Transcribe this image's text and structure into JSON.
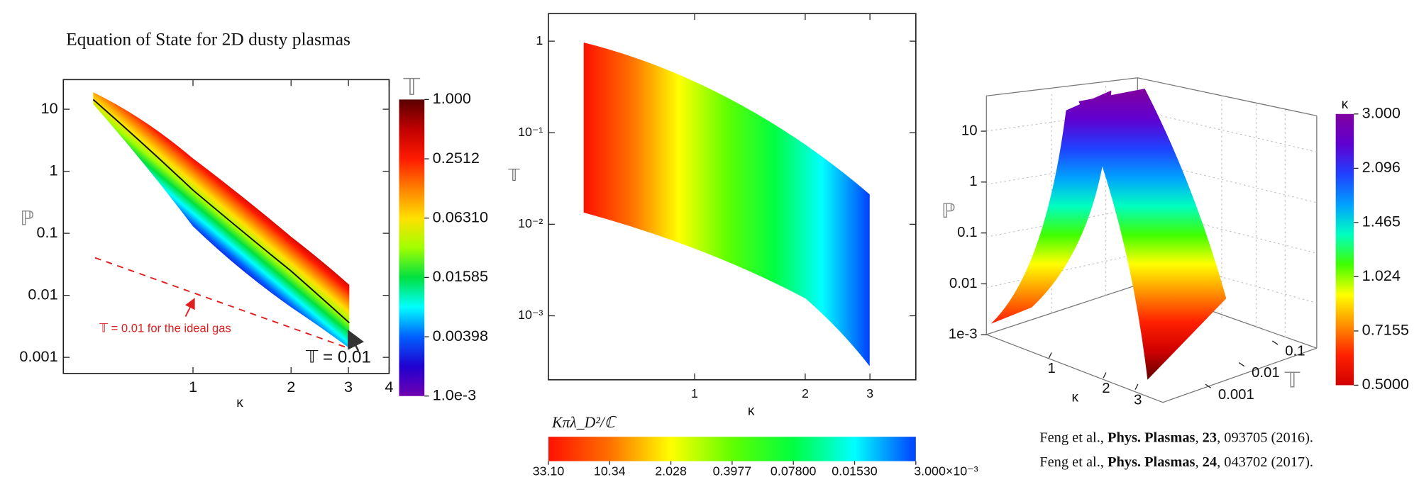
{
  "chart_data": [
    {
      "type": "surface-band",
      "title": "Equation of State for 2D dusty plasmas",
      "x_label": "κ",
      "y_label": "ℙ",
      "log_x": true,
      "log_y": true,
      "xlim": [
        0.4,
        4
      ],
      "ylim": [
        0.00055,
        30
      ],
      "xticks": [
        1,
        2,
        3,
        4
      ],
      "yticks": [
        10,
        1,
        0.1,
        0.01,
        0.001
      ],
      "annotations": [
        "𝕋 = 0.01 for the ideal gas",
        "𝕋 = 0.01"
      ],
      "colorbar": {
        "title": "𝕋",
        "log": true,
        "lim": [
          0.001,
          1
        ],
        "ticks": [
          {
            "value": 1,
            "label": "1.000"
          },
          0.2512,
          {
            "value": 0.0631,
            "label": "0.06310"
          },
          0.01585,
          0.00398,
          {
            "value": 0.001,
            "label": "1.0e-3"
          }
        ],
        "colors": [
          "#5a0000",
          "#c00000",
          "#ff1a00",
          "#ff8000",
          "#ffe000",
          "#a0ff00",
          "#00e040",
          "#00ffff",
          "#0060ff",
          "#2000d0",
          "#7000b0"
        ]
      }
    },
    {
      "type": "surface-map",
      "x_label": "κ",
      "y_label": "𝕋",
      "log_x": true,
      "log_y": true,
      "xlim": [
        0.4,
        4
      ],
      "ylim": [
        0.0002,
        2
      ],
      "xticks": [
        1,
        2,
        3
      ],
      "yticks": [
        1,
        {
          "value": 0.1,
          "label": "10⁻¹"
        },
        {
          "value": 0.01,
          "label": "10⁻²"
        },
        {
          "value": 0.001,
          "label": "10⁻³"
        }
      ],
      "colorbar": {
        "title": "Kπλ_D²/ℂ",
        "ticks": [
          {
            "value": 33.1,
            "label": "33.10"
          },
          10.34,
          2.028,
          0.3977,
          {
            "value": 0.078,
            "label": "0.07800"
          },
          {
            "value": 0.0153,
            "label": "0.01530"
          },
          {
            "value": 0.003,
            "label": "3.000×10⁻³"
          }
        ],
        "colors": [
          "#ff1000",
          "#ff7000",
          "#ffff00",
          "#60ff00",
          "#00ff40",
          "#00ffff",
          "#0040ff"
        ]
      }
    },
    {
      "type": "surface-3d",
      "z_label": "ℙ",
      "x_label": "κ",
      "y_label": "𝕋",
      "zticks": [
        10,
        1,
        0.1,
        0.01,
        {
          "value": 0.001,
          "label": "1e-3"
        }
      ],
      "xticks": [
        1,
        2,
        3
      ],
      "yticks": [
        0.001,
        0.01,
        0.1
      ],
      "colorbar": {
        "title": "κ",
        "log": true,
        "lim": [
          0.5,
          3
        ],
        "ticks": [
          {
            "value": 3,
            "label": "3.000"
          },
          2.096,
          1.465,
          1.024,
          0.7155,
          {
            "value": 0.5,
            "label": "0.5000"
          }
        ],
        "colors": [
          "#600000",
          "#d00000",
          "#ff2000",
          "#ff9000",
          "#ffff00",
          "#40ff00",
          "#00ffc0",
          "#00a0ff",
          "#2040ff",
          "#6000d0",
          "#8000a0"
        ]
      }
    }
  ],
  "references": [
    [
      {
        "text": "Feng et al., "
      },
      {
        "text": "Phys. Plasmas",
        "bold": true
      },
      {
        "text": ", "
      },
      {
        "text": "23",
        "bold": true
      },
      {
        "text": ", 093705 (2016)."
      }
    ],
    [
      {
        "text": "Feng et al., "
      },
      {
        "text": "Phys. Plasmas",
        "bold": true
      },
      {
        "text": ", "
      },
      {
        "text": "24",
        "bold": true
      },
      {
        "text": ", 043702 (2017)."
      }
    ]
  ]
}
